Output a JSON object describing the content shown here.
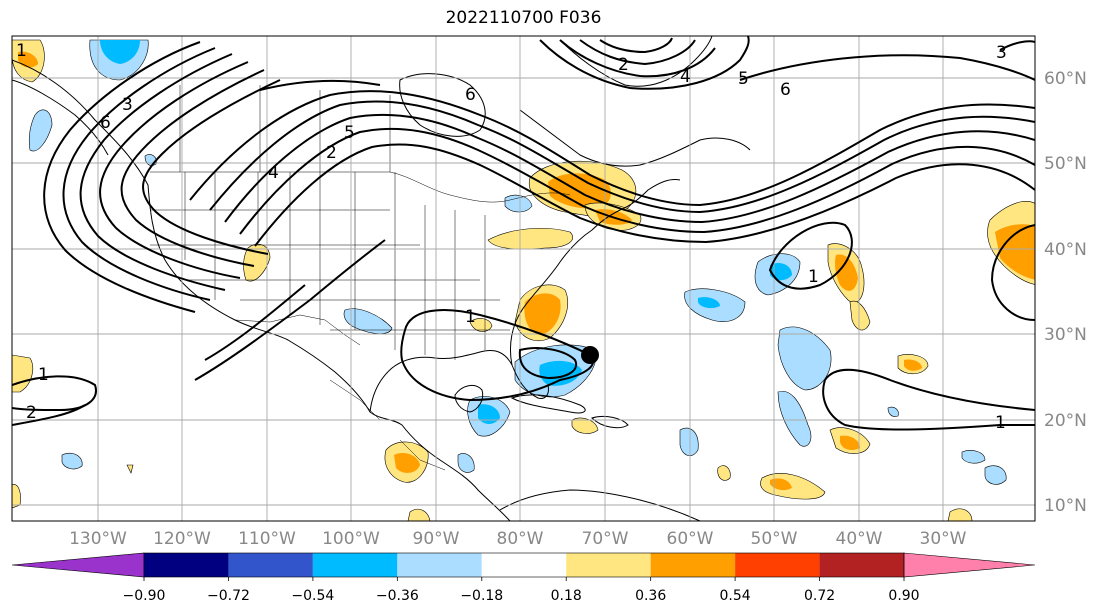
{
  "title": "2022110700 F036",
  "longitude_labels": [
    "130°W",
    "120°W",
    "110°W",
    "100°W",
    "90°W",
    "80°W",
    "70°W",
    "60°W",
    "50°W",
    "40°W",
    "30°W"
  ],
  "latitude_labels": [
    "60°N",
    "50°N",
    "40°N",
    "30°N",
    "20°N",
    "10°N"
  ],
  "colorbar": {
    "tick_labels": [
      "−0.90",
      "−0.72",
      "−0.54",
      "−0.36",
      "−0.18",
      "0.18",
      "0.36",
      "0.54",
      "0.72",
      "0.90"
    ],
    "colors": [
      "#9933cc",
      "#000080",
      "#3355cc",
      "#00bbff",
      "#aaddff",
      "#ffffff",
      "#ffe680",
      "#ffa000",
      "#ff4000",
      "#b22222",
      "#ff80aa"
    ]
  },
  "contour_labels": [
    "1",
    "2",
    "3",
    "4",
    "5",
    "6",
    "1",
    "1",
    "1",
    "2",
    "6",
    "4",
    "5",
    "6",
    "1",
    "3",
    "2"
  ],
  "marker": "storm-center-dot"
}
